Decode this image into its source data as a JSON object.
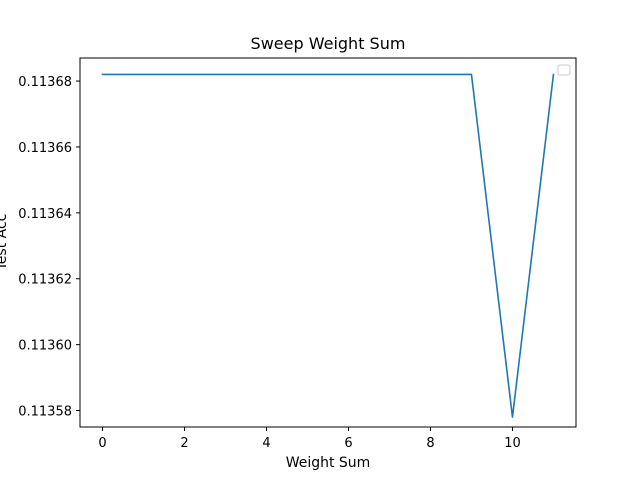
{
  "chart_data": {
    "type": "line",
    "title": "Sweep Weight Sum",
    "xlabel": "Weight Sum",
    "ylabel": "Test Acc",
    "xlim": [
      -0.55,
      11.55
    ],
    "ylim": [
      0.113575,
      0.113687
    ],
    "xticks": [
      0,
      2,
      4,
      6,
      8,
      10
    ],
    "xtick_labels": [
      "0",
      "2",
      "4",
      "6",
      "8",
      "10"
    ],
    "yticks": [
      0.11358,
      0.1136,
      0.11362,
      0.11364,
      0.11366,
      0.11368
    ],
    "ytick_labels": [
      "0.11358",
      "0.11360",
      "0.11362",
      "0.11364",
      "0.11366",
      "0.11368"
    ],
    "grid": false,
    "legend": {
      "location": "upper right",
      "entries": []
    },
    "series": [
      {
        "color": "#1f77b4",
        "x": [
          0,
          1,
          2,
          3,
          4,
          5,
          6,
          7,
          8,
          9,
          10,
          11
        ],
        "y": [
          0.113682,
          0.113682,
          0.113682,
          0.113682,
          0.113682,
          0.113682,
          0.113682,
          0.113682,
          0.113682,
          0.113682,
          0.113578,
          0.113682
        ]
      }
    ]
  }
}
